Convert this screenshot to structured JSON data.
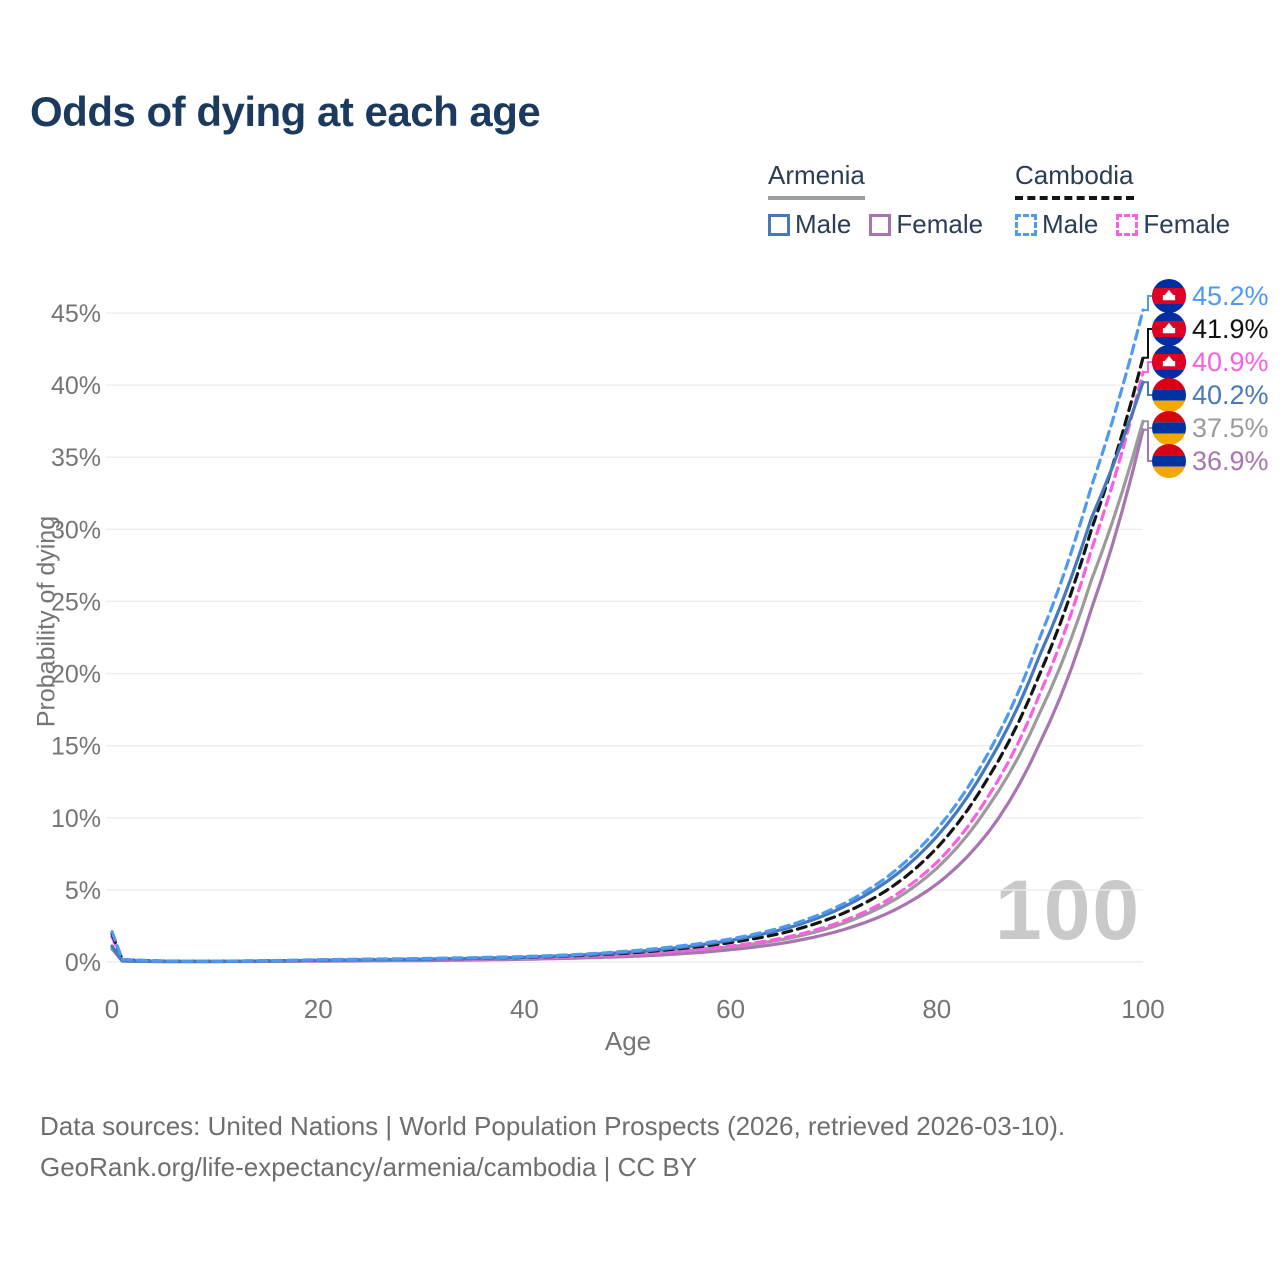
{
  "page": {
    "title": "Odds of dying at each age"
  },
  "legend": {
    "groups": [
      {
        "country": "Armenia",
        "line_style": "solid",
        "underline_color": "#9e9e9e",
        "items": [
          {
            "label": "Male",
            "color": "#4678be"
          },
          {
            "label": "Female",
            "color": "#a974b2"
          }
        ]
      },
      {
        "country": "Cambodia",
        "line_style": "dashed",
        "underline_color": "#141414",
        "items": [
          {
            "label": "Male",
            "color": "#4e9af1"
          },
          {
            "label": "Female",
            "color": "#fa5fe2"
          }
        ]
      }
    ]
  },
  "chart_data": {
    "type": "line",
    "title": "Odds of dying at each age",
    "xlabel": "Age",
    "ylabel": "Probability of dying",
    "watermark": "100",
    "x_ticks": [
      0,
      20,
      40,
      60,
      80,
      100
    ],
    "y_tick_values": [
      0,
      5,
      10,
      15,
      20,
      25,
      30,
      35,
      40,
      45
    ],
    "y_tick_labels": [
      "0%",
      "5%",
      "10%",
      "15%",
      "20%",
      "25%",
      "30%",
      "35%",
      "40%",
      "45%"
    ],
    "xlim": [
      0,
      100
    ],
    "ylim_pct": [
      0,
      46
    ],
    "grid": "horizontal",
    "ages": [
      0,
      1,
      5,
      10,
      15,
      20,
      25,
      30,
      35,
      40,
      45,
      50,
      55,
      60,
      65,
      70,
      75,
      80,
      85,
      90,
      95,
      100
    ],
    "series": [
      {
        "name": "Armenia Female",
        "country": "Armenia",
        "sex": "Female",
        "color": "#a974b2",
        "dashed": false,
        "values_pct": [
          0.9,
          0.06,
          0.03,
          0.03,
          0.04,
          0.06,
          0.08,
          0.1,
          0.14,
          0.19,
          0.27,
          0.38,
          0.56,
          0.85,
          1.3,
          2.05,
          3.3,
          5.4,
          9.0,
          15.2,
          24.5,
          36.9
        ]
      },
      {
        "name": "Armenia Both sexes",
        "country": "Armenia",
        "sex": "Both",
        "color": "#9b9b9b",
        "dashed": false,
        "values_pct": [
          1.0,
          0.07,
          0.035,
          0.035,
          0.055,
          0.09,
          0.12,
          0.15,
          0.2,
          0.26,
          0.37,
          0.52,
          0.77,
          1.05,
          1.55,
          2.45,
          3.95,
          6.5,
          10.8,
          17.3,
          26.5,
          37.5
        ]
      },
      {
        "name": "Cambodia Female",
        "country": "Cambodia",
        "sex": "Female",
        "color": "#fa5fe2",
        "dashed": true,
        "values_pct": [
          1.75,
          0.14,
          0.06,
          0.05,
          0.07,
          0.1,
          0.13,
          0.16,
          0.2,
          0.26,
          0.36,
          0.5,
          0.75,
          1.1,
          1.65,
          2.6,
          4.2,
          6.9,
          11.5,
          18.6,
          28.6,
          40.9
        ]
      },
      {
        "name": "Cambodia Both sexes",
        "country": "Cambodia",
        "sex": "Both",
        "color": "#141414",
        "dashed": true,
        "values_pct": [
          1.95,
          0.16,
          0.065,
          0.055,
          0.08,
          0.13,
          0.17,
          0.2,
          0.25,
          0.32,
          0.44,
          0.62,
          0.92,
          1.35,
          2.0,
          3.1,
          4.9,
          7.9,
          12.8,
          20.0,
          30.0,
          41.9
        ]
      },
      {
        "name": "Armenia Male",
        "country": "Armenia",
        "sex": "Male",
        "color": "#4678be",
        "dashed": false,
        "values_pct": [
          1.1,
          0.08,
          0.04,
          0.04,
          0.07,
          0.12,
          0.15,
          0.19,
          0.25,
          0.33,
          0.47,
          0.68,
          1.0,
          1.5,
          2.25,
          3.5,
          5.5,
          8.7,
          13.8,
          21.3,
          30.8,
          40.2
        ]
      },
      {
        "name": "Cambodia Male",
        "country": "Cambodia",
        "sex": "Male",
        "color": "#4e9af1",
        "dashed": true,
        "values_pct": [
          2.1,
          0.18,
          0.07,
          0.06,
          0.09,
          0.16,
          0.2,
          0.24,
          0.3,
          0.38,
          0.52,
          0.75,
          1.1,
          1.6,
          2.4,
          3.7,
          5.8,
          9.2,
          14.5,
          22.5,
          33.0,
          45.2
        ]
      }
    ]
  },
  "end_labels": [
    {
      "value": "45.2%",
      "color": "#4e9af1",
      "flag": "cambodia",
      "series": "Cambodia Male",
      "line_end_pct": 45.2
    },
    {
      "value": "41.9%",
      "color": "#111111",
      "flag": "cambodia",
      "series": "Cambodia Both sexes",
      "line_end_pct": 41.9
    },
    {
      "value": "40.9%",
      "color": "#fa5fe2",
      "flag": "cambodia",
      "series": "Cambodia Female",
      "line_end_pct": 40.9
    },
    {
      "value": "40.2%",
      "color": "#4678be",
      "flag": "armenia",
      "series": "Armenia Male",
      "line_end_pct": 40.2
    },
    {
      "value": "37.5%",
      "color": "#9b9b9b",
      "flag": "armenia",
      "series": "Armenia Both sexes",
      "line_end_pct": 37.5
    },
    {
      "value": "36.9%",
      "color": "#a974b2",
      "flag": "armenia",
      "series": "Armenia Female",
      "line_end_pct": 36.9
    }
  ],
  "footer": {
    "line1": "Data sources: United Nations | World Population Prospects (2026, retrieved 2026-03-10).",
    "line2": "GeoRank.org/life-expectancy/armenia/cambodia | CC BY"
  }
}
